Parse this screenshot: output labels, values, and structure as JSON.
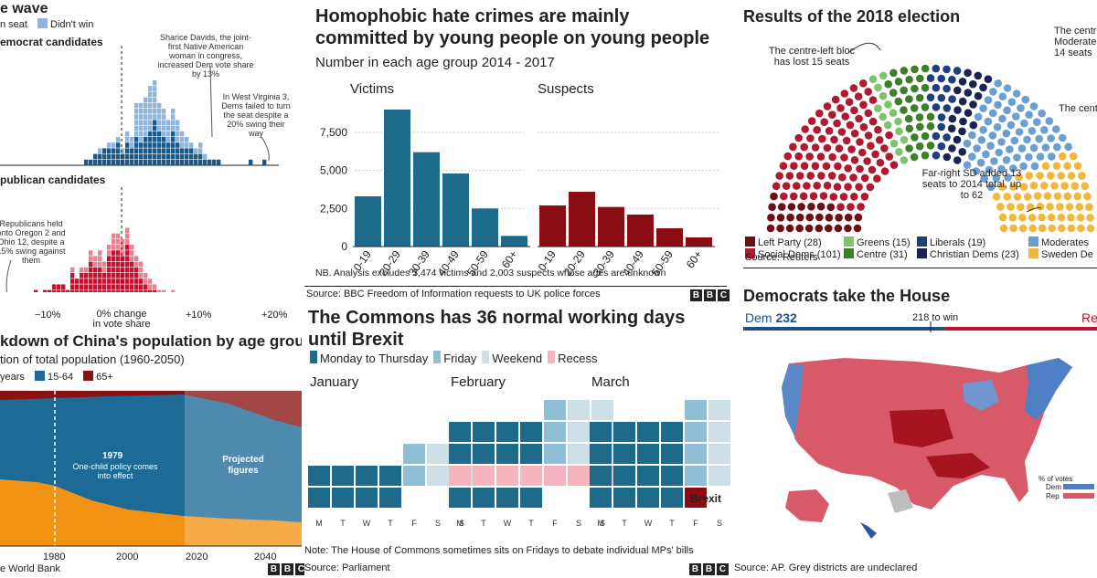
{
  "p1": {
    "title": "e wave",
    "legend": [
      {
        "label": "n seat",
        "color": "#175a8a"
      },
      {
        "label": "Didn't win",
        "color": "#8fb6da"
      }
    ],
    "dem_label": "emocrat candidates",
    "rep_label": "publican candidates",
    "ann_davids": "Sharice Davids, the joint-first Native American woman in congress, increased Dem vote share by 13%",
    "ann_wv": "In West Virginia 3, Dems failed to turn the seat despite a 20% swing their way",
    "ann_rep": "Republicans held onto Oregon 2 and Ohio 12, despite a 15% swing against them",
    "axis_mid": "0% change in vote share",
    "x_ticks": [
      "−10%",
      "+10%",
      "+20%"
    ],
    "colors": {
      "dem_win": "#175a8a",
      "dem_lose": "#8fb6da",
      "rep_win": "#c8102e",
      "rep_lose": "#e7838f"
    }
  },
  "p2": {
    "title": "Homophobic hate crimes are mainly committed by young people on young people",
    "subtitle": "Number in each age group 2014 - 2017",
    "note": "NB. Analysis excludes 3,474 victims and 2,003 suspects whose ages are unknown",
    "source": "Source: BBC Freedom of Information requests to UK police forces"
  },
  "p3": {
    "title": "Results of the 2018 election",
    "ann_left": "The centre-left bloc has lost 15 seats",
    "ann_right_top": "The centre Moderate 14 seats",
    "ann_right_mid": "The cent",
    "ann_sd": "Far-right SD added 13 seats to 2014 total, up to 62",
    "source": "Source: Reuters",
    "parties": [
      {
        "label": "Left Party (28)",
        "color": "#6e0f16",
        "seats": 28
      },
      {
        "label": "Social Dems (101)",
        "color": "#b01a2e",
        "seats": 101
      },
      {
        "label": "Greens (15)",
        "color": "#7fc36c",
        "seats": 15
      },
      {
        "label": "Centre (31)",
        "color": "#3c7f28",
        "seats": 31
      },
      {
        "label": "Liberals (19)",
        "color": "#1e3f7a",
        "seats": 19
      },
      {
        "label": "Christian Dems (23)",
        "color": "#1b2350",
        "seats": 23
      },
      {
        "label": "Moderates",
        "color": "#6c9fd1",
        "seats": 70
      },
      {
        "label": "Sweden De",
        "color": "#f2b73c",
        "seats": 62
      }
    ]
  },
  "p4": {
    "title": "kdown of China's population by age group",
    "subtitle": "tion of total population (1960-2050)",
    "legend": [
      {
        "label": "years",
        "color": "#f39314"
      },
      {
        "label": "15-64",
        "color": "#1d6a96"
      },
      {
        "label": "65+",
        "color": "#8a1212"
      }
    ],
    "ann_year": "1979",
    "ann_text": "One-child policy comes into effect",
    "projected": "Projected figures",
    "x_ticks": [
      "1980",
      "2000",
      "2020",
      "2040"
    ],
    "source": "e World Bank"
  },
  "p5": {
    "title": "The Commons has 36 normal working days until Brexit",
    "legend": [
      {
        "label": "Monday to Thursday",
        "color": "#1d6a8a"
      },
      {
        "label": "Friday",
        "color": "#8fbfd6"
      },
      {
        "label": "Weekend",
        "color": "#cde0e8"
      },
      {
        "label": "Recess",
        "color": "#f5b4c0"
      }
    ],
    "months": [
      "January",
      "February",
      "March"
    ],
    "days": [
      "M",
      "T",
      "W",
      "T",
      "F",
      "S",
      "S"
    ],
    "brexit": "Brexit",
    "note": "Note: The House of Commons sometimes sits on Fridays to debate individual MPs' bills",
    "source": "Source: Parliament"
  },
  "p6": {
    "title": "Democrats take the House",
    "dem_label": "Dem",
    "dem_seats": "232",
    "to_win": "218 to win",
    "rep_label": "Re",
    "legend_title": "% of votes",
    "legend_dem": "Dem",
    "legend_rep": "Rep",
    "source": "Source: AP. Grey districts are undeclared"
  },
  "chart_data": [
    {
      "type": "bar",
      "title": "Victims",
      "categories": [
        "0-19",
        "20-29",
        "30-39",
        "40-49",
        "50-59",
        "60+"
      ],
      "values": [
        3300,
        9000,
        6200,
        4800,
        2500,
        700
      ],
      "ylim": [
        0,
        9000
      ],
      "y_ticks": [
        "0",
        "2,500",
        "5,000",
        "7,500"
      ],
      "color": "#1d6a8a"
    },
    {
      "type": "bar",
      "title": "Suspects",
      "categories": [
        "0-19",
        "20-29",
        "30-39",
        "40-49",
        "50-59",
        "60+"
      ],
      "values": [
        2700,
        3600,
        2600,
        2100,
        1200,
        600
      ],
      "ylim": [
        0,
        9000
      ],
      "color": "#8a0d13"
    }
  ]
}
